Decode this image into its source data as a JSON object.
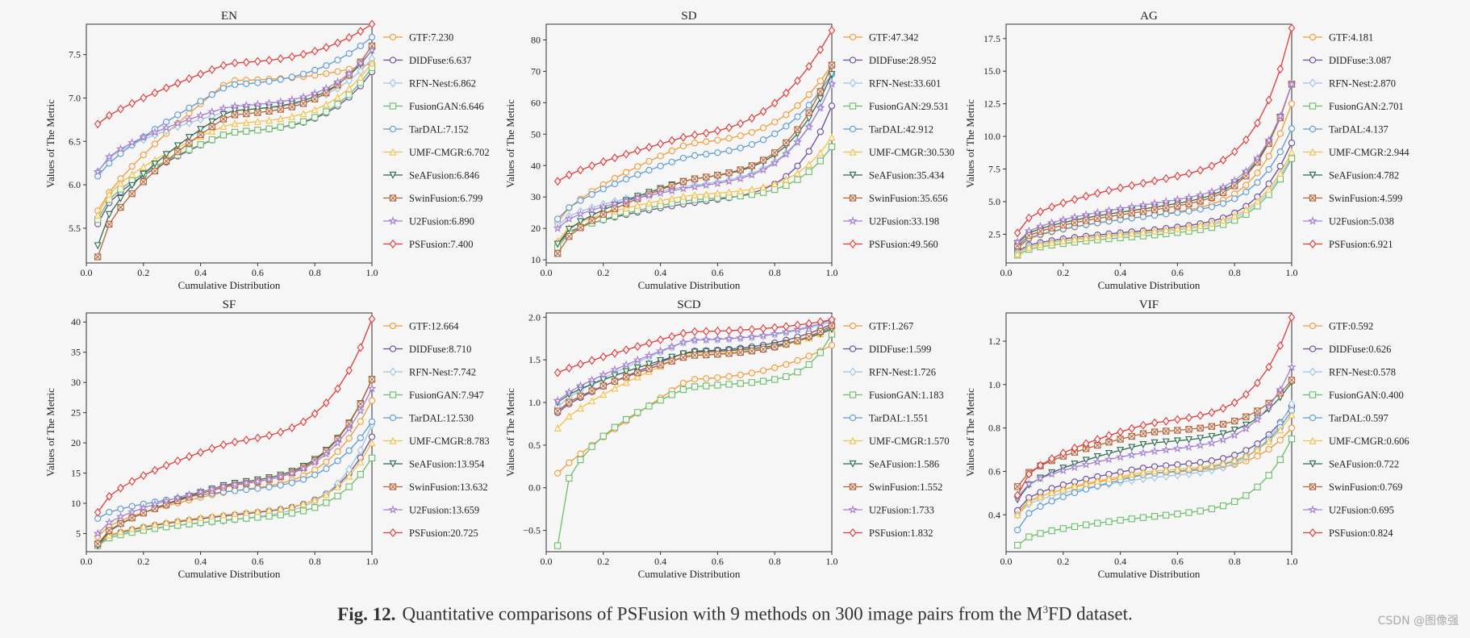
{
  "caption": {
    "label": "Fig. 12.",
    "text_before": "Quantitative comparisons of PSFusion with 9 methods on 300 image pairs from the M",
    "superscript": "3",
    "text_after": "FD dataset."
  },
  "watermark": "CSDN @图像强",
  "methods": [
    {
      "name": "GTF",
      "color": "#f39a36",
      "marker": "circle"
    },
    {
      "name": "DIDFuse",
      "color": "#6a4c9c",
      "marker": "circle"
    },
    {
      "name": "RFN-Nest",
      "color": "#9ec4e5",
      "marker": "diamond"
    },
    {
      "name": "FusionGAN",
      "color": "#6cbd6a",
      "marker": "square"
    },
    {
      "name": "TarDAL",
      "color": "#5b9bd1",
      "marker": "circle"
    },
    {
      "name": "UMF-CMGR",
      "color": "#f4c045",
      "marker": "triangle-up"
    },
    {
      "name": "SeAFusion",
      "color": "#2e6b4f",
      "marker": "triangle-down"
    },
    {
      "name": "SwinFusion",
      "color": "#b5643a",
      "marker": "x-square"
    },
    {
      "name": "U2Fusion",
      "color": "#a581cf",
      "marker": "star"
    },
    {
      "name": "PSFusion",
      "color": "#e23a3a",
      "marker": "diamond"
    }
  ],
  "chart_data": [
    {
      "type": "line",
      "title": "EN",
      "xlabel": "Cumulative Distribution",
      "ylabel": "Values of The Metric",
      "xlim": [
        0,
        1
      ],
      "ylim": [
        5.1,
        7.85
      ],
      "xticks": [
        0.0,
        0.2,
        0.4,
        0.6,
        0.8,
        1.0
      ],
      "xtick_labels": [
        "0.0",
        "0.2",
        "0.4",
        "0.6",
        "0.8",
        "1.0"
      ],
      "yticks": [
        5.5,
        6.0,
        6.5,
        7.0,
        7.5
      ],
      "ytick_labels": [
        "5.5",
        "6.0",
        "6.5",
        "7.0",
        "7.5"
      ],
      "legend": [
        "GTF:7.230",
        "DIDFuse:6.637",
        "RFN-Nest:6.862",
        "FusionGAN:6.646",
        "TarDAL:7.152",
        "UMF-CMGR:6.702",
        "SeAFusion:6.846",
        "SwinFusion:6.799",
        "U2Fusion:6.890",
        "PSFusion:7.400"
      ],
      "series": [
        {
          "start": 5.7,
          "end": 7.4,
          "mid": 7.2,
          "shape": 0.8
        },
        {
          "start": 5.55,
          "end": 7.3,
          "mid": 6.6,
          "shape": 0.6
        },
        {
          "start": 6.15,
          "end": 7.45,
          "mid": 6.85,
          "shape": 0.6
        },
        {
          "start": 5.6,
          "end": 7.35,
          "mid": 6.6,
          "shape": 0.6
        },
        {
          "start": 6.1,
          "end": 7.7,
          "mid": 7.15,
          "shape": 0.8
        },
        {
          "start": 5.65,
          "end": 7.4,
          "mid": 6.7,
          "shape": 0.6
        },
        {
          "start": 5.3,
          "end": 7.55,
          "mid": 6.85,
          "shape": 0.6
        },
        {
          "start": 5.17,
          "end": 7.6,
          "mid": 6.8,
          "shape": 0.6
        },
        {
          "start": 6.15,
          "end": 7.55,
          "mid": 6.9,
          "shape": 0.6
        },
        {
          "start": 6.7,
          "end": 7.85,
          "mid": 7.4,
          "shape": 0.8
        }
      ]
    },
    {
      "type": "line",
      "title": "SD",
      "xlabel": "Cumulative Distribution",
      "ylabel": "Values of The Metric",
      "xlim": [
        0,
        1
      ],
      "ylim": [
        9,
        85
      ],
      "xticks": [
        0.0,
        0.2,
        0.4,
        0.6,
        0.8,
        1.0
      ],
      "xtick_labels": [
        "0.0",
        "0.2",
        "0.4",
        "0.6",
        "0.8",
        "1.0"
      ],
      "yticks": [
        10,
        20,
        30,
        40,
        50,
        60,
        70,
        80
      ],
      "ytick_labels": [
        "10",
        "20",
        "30",
        "40",
        "50",
        "60",
        "70",
        "80"
      ],
      "legend": [
        "GTF:47.342",
        "DIDFuse:28.952",
        "RFN-Nest:33.601",
        "FusionGAN:29.531",
        "TarDAL:42.912",
        "UMF-CMGR:30.530",
        "SeAFusion:35.434",
        "SwinFusion:35.656",
        "U2Fusion:33.198",
        "PSFusion:49.560"
      ],
      "series": [
        {
          "start": 22,
          "end": 72,
          "mid": 47,
          "shape": 0.7
        },
        {
          "start": 15,
          "end": 59,
          "mid": 28,
          "shape": 0.5
        },
        {
          "start": 21,
          "end": 66,
          "mid": 33.5,
          "shape": 0.6
        },
        {
          "start": 14,
          "end": 46,
          "mid": 29,
          "shape": 0.5
        },
        {
          "start": 23,
          "end": 69,
          "mid": 43,
          "shape": 0.7
        },
        {
          "start": 16,
          "end": 49,
          "mid": 30.5,
          "shape": 0.5
        },
        {
          "start": 15,
          "end": 69,
          "mid": 35.5,
          "shape": 0.6
        },
        {
          "start": 12,
          "end": 72,
          "mid": 35.5,
          "shape": 0.6
        },
        {
          "start": 20,
          "end": 66,
          "mid": 33,
          "shape": 0.6
        },
        {
          "start": 35,
          "end": 83,
          "mid": 49.5,
          "shape": 0.8
        }
      ]
    },
    {
      "type": "line",
      "title": "AG",
      "xlabel": "Cumulative Distribution",
      "ylabel": "Values of The Metric",
      "xlim": [
        0,
        1
      ],
      "ylim": [
        0.3,
        18.6
      ],
      "xticks": [
        0.0,
        0.2,
        0.4,
        0.6,
        0.8,
        1.0
      ],
      "xtick_labels": [
        "0.0",
        "0.2",
        "0.4",
        "0.6",
        "0.8",
        "1.0"
      ],
      "yticks": [
        2.5,
        5.0,
        7.5,
        10.0,
        12.5,
        15.0,
        17.5
      ],
      "ytick_labels": [
        "2.5",
        "5.0",
        "7.5",
        "10.0",
        "12.5",
        "15.0",
        "17.5"
      ],
      "legend": [
        "GTF:4.181",
        "DIDFuse:3.087",
        "RFN-Nest:2.870",
        "FusionGAN:2.701",
        "TarDAL:4.137",
        "UMF-CMGR:2.944",
        "SeAFusion:4.782",
        "SwinFusion:4.599",
        "U2Fusion:5.038",
        "PSFusion:6.921"
      ],
      "series": [
        {
          "start": 1.4,
          "end": 12.5,
          "mid": 3.9,
          "shape": 0.5
        },
        {
          "start": 1.2,
          "end": 9.5,
          "mid": 2.8,
          "shape": 0.5
        },
        {
          "start": 1.1,
          "end": 8.5,
          "mid": 2.6,
          "shape": 0.5
        },
        {
          "start": 0.9,
          "end": 8.3,
          "mid": 2.4,
          "shape": 0.5
        },
        {
          "start": 1.5,
          "end": 10.6,
          "mid": 3.9,
          "shape": 0.5
        },
        {
          "start": 1.0,
          "end": 8.8,
          "mid": 2.7,
          "shape": 0.5
        },
        {
          "start": 1.8,
          "end": 14.0,
          "mid": 4.5,
          "shape": 0.5
        },
        {
          "start": 1.6,
          "end": 14.0,
          "mid": 4.3,
          "shape": 0.5
        },
        {
          "start": 1.9,
          "end": 14.0,
          "mid": 4.8,
          "shape": 0.5
        },
        {
          "start": 2.6,
          "end": 18.3,
          "mid": 6.5,
          "shape": 0.5
        }
      ]
    },
    {
      "type": "line",
      "title": "SF",
      "xlabel": "Cumulative Distribution",
      "ylabel": "Values of The Metric",
      "xlim": [
        0,
        1
      ],
      "ylim": [
        2,
        41.5
      ],
      "xticks": [
        0.0,
        0.2,
        0.4,
        0.6,
        0.8,
        1.0
      ],
      "xtick_labels": [
        "0.0",
        "0.2",
        "0.4",
        "0.6",
        "0.8",
        "1.0"
      ],
      "yticks": [
        5,
        10,
        15,
        20,
        25,
        30,
        35,
        40
      ],
      "ytick_labels": [
        "5",
        "10",
        "15",
        "20",
        "25",
        "30",
        "35",
        "40"
      ],
      "legend": [
        "GTF:12.664",
        "DIDFuse:8.710",
        "RFN-Nest:7.742",
        "FusionGAN:7.947",
        "TarDAL:12.530",
        "UMF-CMGR:8.783",
        "SeAFusion:13.954",
        "SwinFusion:13.632",
        "U2Fusion:13.659",
        "PSFusion:20.725"
      ],
      "series": [
        {
          "start": 4.5,
          "end": 27.0,
          "mid": 12.0,
          "shape": 0.6
        },
        {
          "start": 3.2,
          "end": 21.0,
          "mid": 8.0,
          "shape": 0.5
        },
        {
          "start": 3.5,
          "end": 23.0,
          "mid": 7.2,
          "shape": 0.5
        },
        {
          "start": 3.0,
          "end": 17.5,
          "mid": 7.3,
          "shape": 0.5
        },
        {
          "start": 7.5,
          "end": 23.5,
          "mid": 12.0,
          "shape": 0.6
        },
        {
          "start": 3.3,
          "end": 20.0,
          "mid": 8.2,
          "shape": 0.5
        },
        {
          "start": 3.0,
          "end": 30.5,
          "mid": 13.2,
          "shape": 0.6
        },
        {
          "start": 3.3,
          "end": 30.5,
          "mid": 12.9,
          "shape": 0.6
        },
        {
          "start": 5.0,
          "end": 29.0,
          "mid": 13.0,
          "shape": 0.6
        },
        {
          "start": 8.5,
          "end": 40.5,
          "mid": 20.0,
          "shape": 0.6
        }
      ]
    },
    {
      "type": "line",
      "title": "SCD",
      "xlabel": "Cumulative Distribution",
      "ylabel": "Values of The Metric",
      "xlim": [
        0,
        1
      ],
      "ylim": [
        -0.75,
        2.05
      ],
      "xticks": [
        0.0,
        0.2,
        0.4,
        0.6,
        0.8,
        1.0
      ],
      "xtick_labels": [
        "0.0",
        "0.2",
        "0.4",
        "0.6",
        "0.8",
        "1.0"
      ],
      "yticks": [
        -0.5,
        0.0,
        0.5,
        1.0,
        1.5,
        2.0
      ],
      "ytick_labels": [
        "−0.5",
        "0.0",
        "0.5",
        "1.0",
        "1.5",
        "2.0"
      ],
      "legend": [
        "GTF:1.267",
        "DIDFuse:1.599",
        "RFN-Nest:1.726",
        "FusionGAN:1.183",
        "TarDAL:1.551",
        "UMF-CMGR:1.570",
        "SeAFusion:1.586",
        "SwinFusion:1.552",
        "U2Fusion:1.733",
        "PSFusion:1.832"
      ],
      "series": [
        {
          "start": 0.17,
          "end": 1.67,
          "mid": 1.27,
          "shape": 0.9
        },
        {
          "start": 0.88,
          "end": 1.92,
          "mid": 1.6,
          "shape": 0.8
        },
        {
          "start": 0.95,
          "end": 1.95,
          "mid": 1.73,
          "shape": 0.8
        },
        {
          "start": -0.68,
          "end": 1.8,
          "mid": 1.18,
          "shape": 0.35
        },
        {
          "start": 0.9,
          "end": 1.88,
          "mid": 1.55,
          "shape": 0.75
        },
        {
          "start": 0.7,
          "end": 1.86,
          "mid": 1.57,
          "shape": 0.75
        },
        {
          "start": 1.0,
          "end": 1.86,
          "mid": 1.59,
          "shape": 0.75
        },
        {
          "start": 0.9,
          "end": 1.9,
          "mid": 1.55,
          "shape": 0.75
        },
        {
          "start": 1.02,
          "end": 1.97,
          "mid": 1.73,
          "shape": 0.8
        },
        {
          "start": 1.35,
          "end": 1.97,
          "mid": 1.83,
          "shape": 0.9
        }
      ]
    },
    {
      "type": "line",
      "title": "VIF",
      "xlabel": "Cumulative Distribution",
      "ylabel": "Values of The Metric",
      "xlim": [
        0,
        1
      ],
      "ylim": [
        0.23,
        1.33
      ],
      "xticks": [
        0.0,
        0.2,
        0.4,
        0.6,
        0.8,
        1.0
      ],
      "xtick_labels": [
        "0.0",
        "0.2",
        "0.4",
        "0.6",
        "0.8",
        "1.0"
      ],
      "yticks": [
        0.4,
        0.6,
        0.8,
        1.0,
        1.2
      ],
      "ytick_labels": [
        "0.4",
        "0.6",
        "0.8",
        "1.0",
        "1.2"
      ],
      "legend": [
        "GTF:0.592",
        "DIDFuse:0.626",
        "RFN-Nest:0.578",
        "FusionGAN:0.400",
        "TarDAL:0.597",
        "UMF-CMGR:0.606",
        "SeAFusion:0.722",
        "SwinFusion:0.769",
        "U2Fusion:0.695",
        "PSFusion:0.824"
      ],
      "series": [
        {
          "start": 0.41,
          "end": 0.8,
          "mid": 0.59,
          "shape": 0.5
        },
        {
          "start": 0.42,
          "end": 0.9,
          "mid": 0.62,
          "shape": 0.5
        },
        {
          "start": 0.4,
          "end": 0.91,
          "mid": 0.57,
          "shape": 0.5
        },
        {
          "start": 0.26,
          "end": 0.75,
          "mid": 0.39,
          "shape": 0.5
        },
        {
          "start": 0.33,
          "end": 0.88,
          "mid": 0.59,
          "shape": 0.5
        },
        {
          "start": 0.4,
          "end": 0.86,
          "mid": 0.6,
          "shape": 0.5
        },
        {
          "start": 0.47,
          "end": 1.01,
          "mid": 0.73,
          "shape": 0.55
        },
        {
          "start": 0.53,
          "end": 1.02,
          "mid": 0.78,
          "shape": 0.55
        },
        {
          "start": 0.48,
          "end": 1.08,
          "mid": 0.69,
          "shape": 0.5
        },
        {
          "start": 0.49,
          "end": 1.31,
          "mid": 0.82,
          "shape": 0.5
        }
      ]
    }
  ]
}
